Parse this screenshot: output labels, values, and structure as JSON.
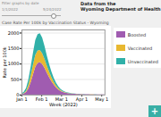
{
  "chart_data": {
    "type": "area",
    "stacked": true,
    "title": "Case Rate Per 100k by Vaccination Status - Wyoming",
    "subtitle": "Data from the\nWyoming Department of Health",
    "annotations": [
      "Filter graphs by date",
      "1/1/2022",
      "5/24/2022",
      "+"
    ],
    "xlabel": "Week (2022)",
    "ylabel": "Rate per 100k",
    "x": [
      0,
      0.5,
      1,
      1.5,
      2,
      2.5,
      3,
      3.5,
      4,
      4.5,
      5,
      5.5,
      6,
      6.5,
      7,
      7.5,
      8,
      8.5,
      9,
      9.5,
      10,
      10.5,
      11,
      11.5,
      12,
      12.5,
      13,
      13.5,
      14,
      14.5,
      15,
      15.5,
      16,
      16.5,
      17,
      17.5,
      18
    ],
    "series": [
      {
        "name": "Boosted",
        "color": "#a05cb0",
        "values": [
          10,
          30,
          80,
          200,
          400,
          650,
          900,
          1020,
          1050,
          980,
          860,
          700,
          560,
          430,
          320,
          230,
          160,
          110,
          80,
          60,
          45,
          35,
          28,
          22,
          18,
          15,
          12,
          10,
          9,
          8,
          7,
          7,
          6,
          5,
          5,
          4,
          4
        ]
      },
      {
        "name": "Vaccinated",
        "color": "#e8b830",
        "values": [
          5,
          15,
          40,
          110,
          220,
          310,
          380,
          400,
          390,
          350,
          290,
          230,
          175,
          130,
          92,
          65,
          45,
          30,
          20,
          15,
          11,
          8,
          6,
          5,
          4,
          3,
          3,
          2,
          2,
          2,
          1,
          1,
          1,
          1,
          1,
          0,
          0
        ]
      },
      {
        "name": "Unvaccinated",
        "color": "#30b0a8",
        "values": [
          15,
          45,
          90,
          180,
          280,
          390,
          480,
          530,
          540,
          500,
          420,
          330,
          250,
          180,
          125,
          85,
          55,
          38,
          26,
          18,
          14,
          10,
          8,
          6,
          5,
          4,
          3,
          3,
          2,
          2,
          2,
          1,
          1,
          1,
          1,
          0,
          0
        ]
      }
    ],
    "xlim": [
      0,
      18
    ],
    "xticks": [
      {
        "value": 0,
        "label": "Jan 1"
      },
      {
        "value": 4.3,
        "label": "Feb 1"
      },
      {
        "value": 8.6,
        "label": "Mar 1"
      },
      {
        "value": 13.0,
        "label": "Apr 1"
      },
      {
        "value": 17.3,
        "label": "May 1"
      }
    ],
    "ylim": [
      0,
      2100
    ],
    "yticks": [
      0,
      500,
      1000,
      1500,
      2000
    ],
    "grid": true,
    "legend": "right"
  }
}
